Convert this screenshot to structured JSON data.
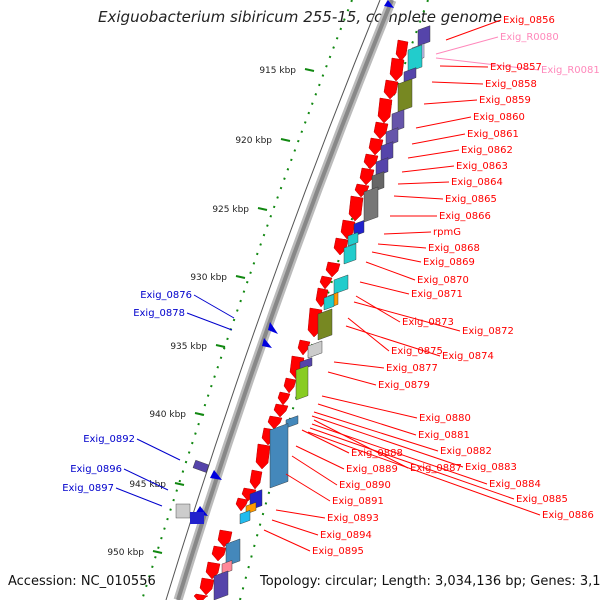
{
  "title": "Exiguobacterium sibiricum 255-15, complete genome",
  "footer": {
    "accession": "Accession: NC_010556",
    "summary": "Topology: circular; Length: 3,034,136 bp; Genes: 3,104"
  },
  "colors": {
    "cds": "#ff0000",
    "rna": "#ff88bb",
    "reverse_label": "#0000cc",
    "backbone": "#888888",
    "ticks": "#118811"
  },
  "scale": {
    "ticks": [
      {
        "label": "915 kbp"
      },
      {
        "label": "920 kbp"
      },
      {
        "label": "925 kbp"
      },
      {
        "label": "930 kbp"
      },
      {
        "label": "935 kbp"
      },
      {
        "label": "940 kbp"
      },
      {
        "label": "945 kbp"
      },
      {
        "label": "950 kbp"
      }
    ]
  },
  "forward_labels": [
    {
      "text": "Exig_0856",
      "kind": "cds"
    },
    {
      "text": "Exig_R0080",
      "kind": "rna"
    },
    {
      "text": "Exig_0857",
      "kind": "cds"
    },
    {
      "text": "Exig_R0081",
      "kind": "rna"
    },
    {
      "text": "Exig_0858",
      "kind": "cds"
    },
    {
      "text": "Exig_0859",
      "kind": "cds"
    },
    {
      "text": "Exig_0860",
      "kind": "cds"
    },
    {
      "text": "Exig_0861",
      "kind": "cds"
    },
    {
      "text": "Exig_0862",
      "kind": "cds"
    },
    {
      "text": "Exig_0863",
      "kind": "cds"
    },
    {
      "text": "Exig_0864",
      "kind": "cds"
    },
    {
      "text": "Exig_0865",
      "kind": "cds"
    },
    {
      "text": "Exig_0866",
      "kind": "cds"
    },
    {
      "text": "rpmG",
      "kind": "cds"
    },
    {
      "text": "Exig_0868",
      "kind": "cds"
    },
    {
      "text": "Exig_0869",
      "kind": "cds"
    },
    {
      "text": "Exig_0870",
      "kind": "cds"
    },
    {
      "text": "Exig_0871",
      "kind": "cds"
    },
    {
      "text": "Exig_0873",
      "kind": "cds"
    },
    {
      "text": "Exig_0872",
      "kind": "cds"
    },
    {
      "text": "Exig_0875",
      "kind": "cds"
    },
    {
      "text": "Exig_0874",
      "kind": "cds"
    },
    {
      "text": "Exig_0877",
      "kind": "cds"
    },
    {
      "text": "Exig_0879",
      "kind": "cds"
    },
    {
      "text": "Exig_0880",
      "kind": "cds"
    },
    {
      "text": "Exig_0881",
      "kind": "cds"
    },
    {
      "text": "Exig_0882",
      "kind": "cds"
    },
    {
      "text": "Exig_0888",
      "kind": "cds"
    },
    {
      "text": "Exig_0887",
      "kind": "cds"
    },
    {
      "text": "Exig_0883",
      "kind": "cds"
    },
    {
      "text": "Exig_0889",
      "kind": "cds"
    },
    {
      "text": "Exig_0890",
      "kind": "cds"
    },
    {
      "text": "Exig_0884",
      "kind": "cds"
    },
    {
      "text": "Exig_0885",
      "kind": "cds"
    },
    {
      "text": "Exig_0891",
      "kind": "cds"
    },
    {
      "text": "Exig_0886",
      "kind": "cds"
    },
    {
      "text": "Exig_0893",
      "kind": "cds"
    },
    {
      "text": "Exig_0894",
      "kind": "cds"
    },
    {
      "text": "Exig_0895",
      "kind": "cds"
    }
  ],
  "reverse_labels": [
    {
      "text": "Exig_0876"
    },
    {
      "text": "Exig_0878"
    },
    {
      "text": "Exig_0892"
    },
    {
      "text": "Exig_0896"
    },
    {
      "text": "Exig_0897"
    }
  ]
}
